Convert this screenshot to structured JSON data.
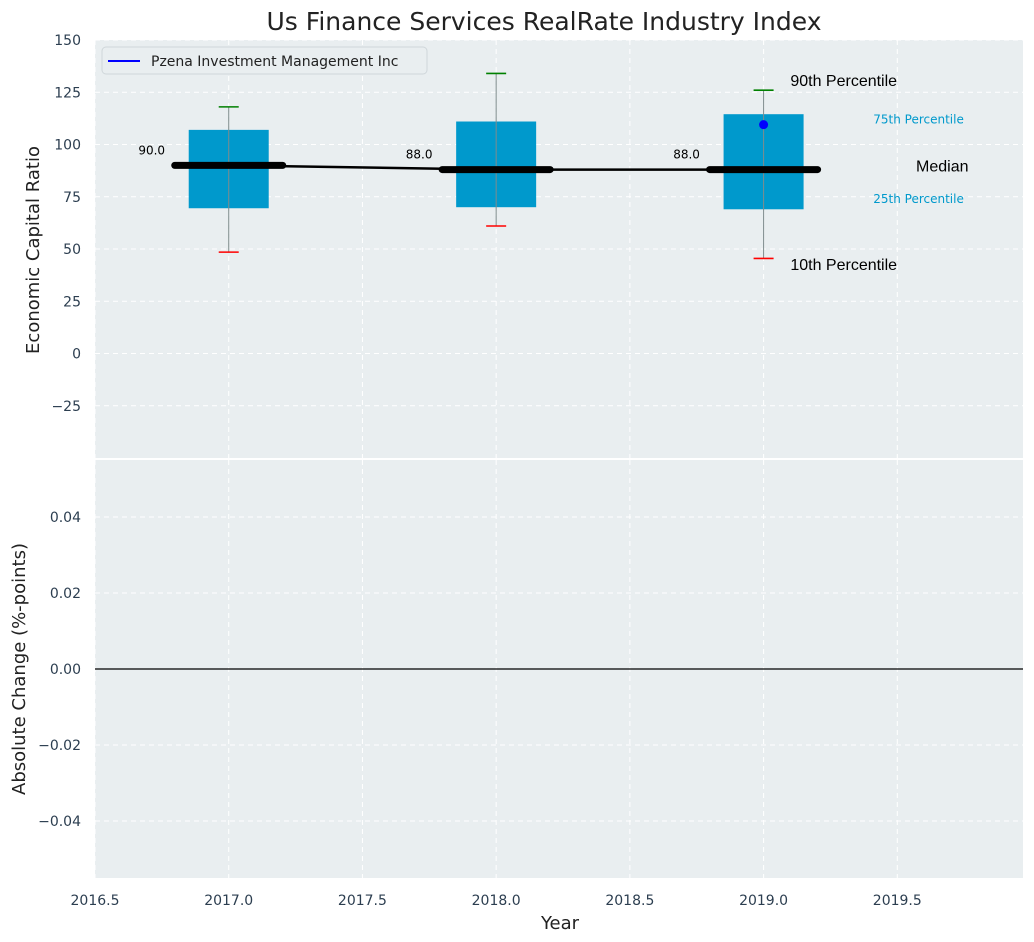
{
  "chart_data": [
    {
      "type": "box",
      "title": "Us Finance Services RealRate Industry Index",
      "ylabel": "Economic Capital Ratio",
      "ylim": [
        -50,
        150
      ],
      "yticks": [
        -25,
        0,
        25,
        50,
        75,
        100,
        125,
        150
      ],
      "grid": true,
      "legend": {
        "placement": "top-left",
        "entries": [
          "Pzena Investment Management Inc"
        ]
      },
      "series": [
        {
          "name": "Pzena Investment Management Inc",
          "x": [
            2019.0
          ],
          "y": [
            109.5
          ]
        }
      ],
      "boxes": [
        {
          "x": 2017.0,
          "p10": 48.5,
          "p25": 69.5,
          "median": 90.0,
          "p75": 107.0,
          "p90": 118.0,
          "median_label": "90.0"
        },
        {
          "x": 2018.0,
          "p10": 61.0,
          "p25": 70.0,
          "median": 88.0,
          "p75": 111.0,
          "p90": 134.0,
          "median_label": "88.0"
        },
        {
          "x": 2019.0,
          "p10": 45.5,
          "p25": 69.0,
          "median": 88.0,
          "p75": 114.5,
          "p90": 126.0,
          "median_label": "88.0"
        }
      ],
      "annotations": {
        "p90": {
          "text": "90th Percentile",
          "x": 2019.1,
          "y": 128
        },
        "p75": {
          "text": "75th Percentile",
          "x": 2019.41,
          "y": 110
        },
        "median": {
          "text": "Median",
          "x": 2019.57,
          "y": 87
        },
        "p25": {
          "text": "25th Percentile",
          "x": 2019.41,
          "y": 72
        },
        "p10": {
          "text": "10th Percentile",
          "x": 2019.1,
          "y": 40
        }
      }
    },
    {
      "type": "line",
      "ylabel": "Absolute Change (%-points)",
      "xlabel": "Year",
      "xlim": [
        2016.5,
        2019.97
      ],
      "ylim": [
        -0.055,
        0.055
      ],
      "xticks": [
        2016.5,
        2017.0,
        2017.5,
        2018.0,
        2018.5,
        2019.0,
        2019.5
      ],
      "xtick_labels": [
        "2016.5",
        "2017.0",
        "2017.5",
        "2018.0",
        "2018.5",
        "2019.0",
        "2019.5"
      ],
      "yticks": [
        -0.04,
        -0.02,
        0.0,
        0.02,
        0.04
      ],
      "ytick_labels": [
        "−0.04",
        "−0.02",
        "0.00",
        "0.02",
        "0.04"
      ],
      "reference_line": 0.0,
      "grid": true
    }
  ],
  "colors": {
    "panel_bg": "#e9eef0",
    "box_fill": "#0099cc",
    "grid": "#ffffff",
    "median_line": "#000000",
    "p90_cap": "#008000",
    "p10_cap": "#ff0000",
    "whisker": "#7f8c8d",
    "marker": "#0000ff",
    "annotation_cyan": "#0099cc"
  }
}
